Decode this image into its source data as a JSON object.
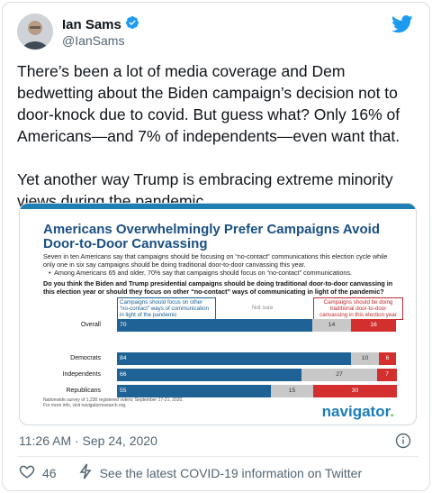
{
  "tweet": {
    "display_name": "Ian Sams",
    "handle": "@IanSams",
    "verified": true,
    "text_p1": "There’s been a lot of media coverage and Dem bedwetting about the Biden campaign’s decision not to door-knock due to covid. But guess what? Only 16% of Americans—and 7% of independents—even want that.",
    "text_p2": "Yet another way Trump is embracing extreme minority views during the pandemic.",
    "timestamp": "11:26 AM · Sep 24, 2020",
    "like_count": "46",
    "covid_link": "See the latest COVID-19 information on Twitter",
    "brand_color": "#1d9bf0"
  },
  "image": {
    "title": "Americans Overwhelmingly Prefer Campaigns Avoid Door-to-Door Canvassing",
    "subtitle": "Seven in ten Americans say that campaigns should be focusing on “no-contact” communications this election cycle while only one in six say campaigns should be doing traditional door-to-door canvassing this year.",
    "bullet": "Among Americans 65 and older, 70% say that campaigns should focus on “no-contact” communications.",
    "question": "Do you think the Biden and Trump presidential campaigns should be doing traditional door-to-door canvassing in this election year or should they focus on other “no-contact” ways of communicating in light of the pandemic?",
    "legend_left": "Campaigns should focus on other “no-contact” ways of communication in light of the pandemic",
    "legend_mid": "Not sure",
    "legend_right": "Campaigns should be doing traditional door-to-door canvassing in this election year",
    "footnote_1": "Nationwide survey of 1,230 registered voters; September 17-21, 2020.",
    "footnote_2": "For more info, visit navigatorresearch.org.",
    "brand": "navigator",
    "brand_dot": "."
  },
  "chart_data": {
    "type": "bar",
    "stacked": true,
    "categories": [
      "Overall",
      "Democrats",
      "Independents",
      "Republicans"
    ],
    "series": [
      {
        "name": "Campaigns should focus on other “no-contact” ways of communication in light of the pandemic",
        "values": [
          70,
          84,
          66,
          55
        ],
        "color": "#1f6296"
      },
      {
        "name": "Not sure",
        "values": [
          14,
          10,
          27,
          15
        ],
        "color": "#c8c8c8"
      },
      {
        "name": "Campaigns should be doing traditional door-to-door canvassing in this election year",
        "values": [
          16,
          6,
          7,
          30
        ],
        "color": "#d32f2f"
      }
    ]
  }
}
